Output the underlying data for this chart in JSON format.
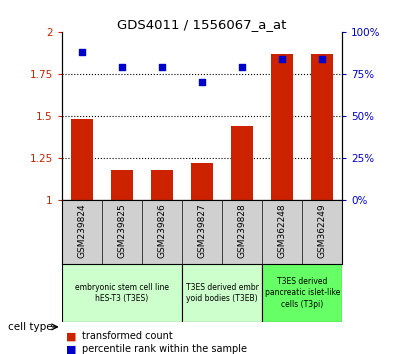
{
  "title": "GDS4011 / 1556067_a_at",
  "samples": [
    "GSM239824",
    "GSM239825",
    "GSM239826",
    "GSM239827",
    "GSM239828",
    "GSM362248",
    "GSM362249"
  ],
  "transformed_count": [
    1.48,
    1.18,
    1.18,
    1.22,
    1.44,
    1.87,
    1.87
  ],
  "percentile_rank": [
    88,
    79,
    79,
    70,
    79,
    84,
    84
  ],
  "ylim_left": [
    1.0,
    2.0
  ],
  "ylim_right": [
    0,
    100
  ],
  "yticks_left": [
    1.0,
    1.25,
    1.5,
    1.75,
    2.0
  ],
  "yticks_right": [
    0,
    25,
    50,
    75,
    100
  ],
  "ytick_labels_left": [
    "1",
    "1.25",
    "1.5",
    "1.75",
    "2"
  ],
  "ytick_labels_right": [
    "0%",
    "25%",
    "50%",
    "75%",
    "100%"
  ],
  "bar_color": "#cc2200",
  "dot_color": "#0000cc",
  "grid_yticks": [
    1.25,
    1.5,
    1.75
  ],
  "legend_bar_label": "transformed count",
  "legend_dot_label": "percentile rank within the sample",
  "cell_type_label": "cell type",
  "groups": [
    {
      "indices": [
        0,
        1,
        2
      ],
      "label": "embryonic stem cell line\nhES-T3 (T3ES)",
      "color": "#ccffcc"
    },
    {
      "indices": [
        3,
        4
      ],
      "label": "T3ES derived embr\nyoid bodies (T3EB)",
      "color": "#ccffcc"
    },
    {
      "indices": [
        5,
        6
      ],
      "label": "T3ES derived\npancreatic islet-like\ncells (T3pi)",
      "color": "#66ff66"
    }
  ],
  "xtick_bg": "#d0d0d0",
  "plot_bg": "#ffffff",
  "fig_bg": "#ffffff"
}
